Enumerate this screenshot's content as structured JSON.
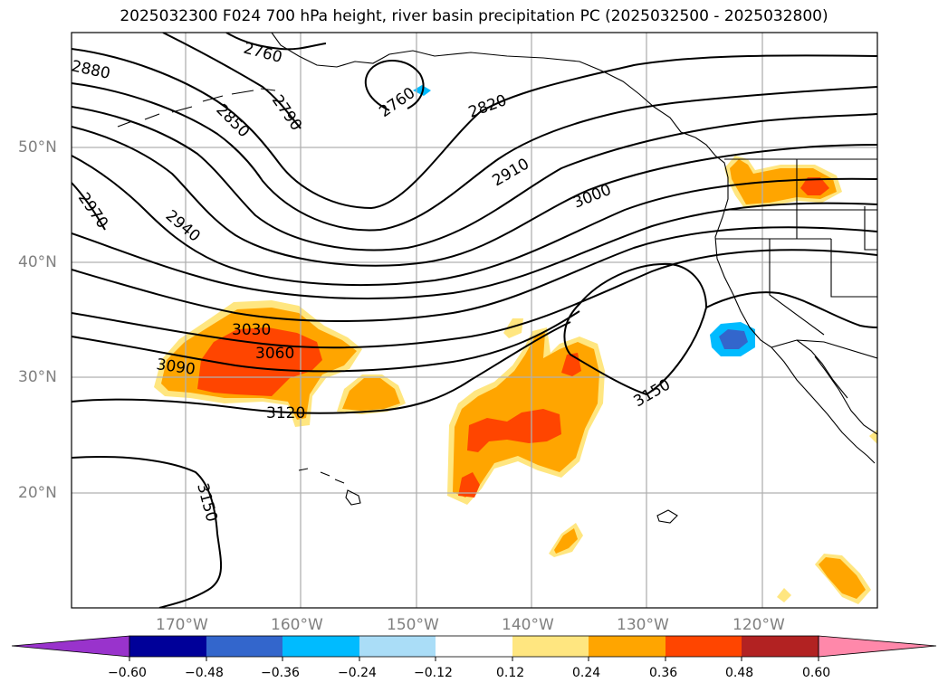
{
  "title": "2025032300 F024 700 hPa height, river basin precipitation PC (2025032500 - 2025032800)",
  "lat_labels": [
    "50°N",
    "40°N",
    "30°N",
    "20°N"
  ],
  "lon_labels": [
    "170°W",
    "160°W",
    "150°W",
    "140°W",
    "130°W",
    "120°W"
  ],
  "contour_labels": [
    "2760",
    "2880",
    "2790",
    "2850",
    "2760",
    "2820",
    "2910",
    "3000",
    "2970",
    "2940",
    "3030",
    "3060",
    "3090",
    "3120",
    "3150",
    "3150"
  ],
  "colorbar": {
    "ticks": [
      "−0.60",
      "−0.48",
      "−0.36",
      "−0.24",
      "−0.12",
      "0.12",
      "0.24",
      "0.36",
      "0.48",
      "0.60"
    ],
    "colors": [
      "#9933cc",
      "#000099",
      "#3366cc",
      "#00bbff",
      "#aaddf7",
      "#ffffff",
      "#ffe680",
      "#ffa500",
      "#ff4500",
      "#b22222",
      "#ff88aa"
    ]
  },
  "shading_colors": {
    "pos1": "#ffe680",
    "pos2": "#ffa500",
    "pos3": "#ff4500",
    "neg1": "#00bbff",
    "neg2": "#3366cc"
  }
}
